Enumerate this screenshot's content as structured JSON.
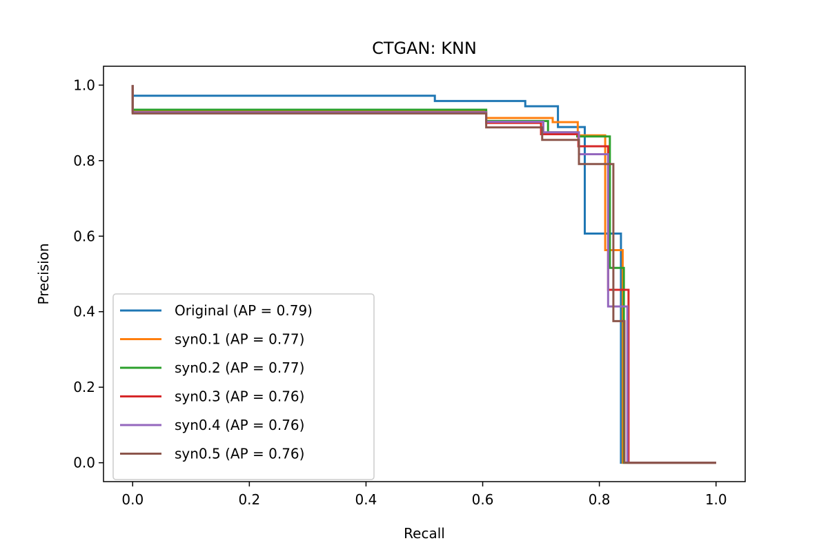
{
  "chart_data": {
    "type": "line",
    "title": "CTGAN: KNN",
    "xlabel": "Recall",
    "ylabel": "Precision",
    "xlim": [
      -0.05,
      1.05
    ],
    "ylim": [
      -0.05,
      1.05
    ],
    "xticks": [
      0.0,
      0.2,
      0.4,
      0.6,
      0.8,
      1.0
    ],
    "yticks": [
      0.0,
      0.2,
      0.4,
      0.6,
      0.8,
      1.0
    ],
    "xtick_labels": [
      "0.0",
      "0.2",
      "0.4",
      "0.6",
      "0.8",
      "1.0"
    ],
    "ytick_labels": [
      "0.0",
      "0.2",
      "0.4",
      "0.6",
      "0.8",
      "1.0"
    ],
    "grid": false,
    "legend_position": "lower-left",
    "series": [
      {
        "name": "Original (AP = 0.79)",
        "color": "#1f77b4",
        "points": [
          [
            0,
            1.0
          ],
          [
            0,
            0.972
          ],
          [
            0.518,
            0.972
          ],
          [
            0.518,
            0.958
          ],
          [
            0.673,
            0.958
          ],
          [
            0.673,
            0.944
          ],
          [
            0.729,
            0.944
          ],
          [
            0.729,
            0.889
          ],
          [
            0.775,
            0.889
          ],
          [
            0.775,
            0.607
          ],
          [
            0.837,
            0.607
          ],
          [
            0.837,
            0.0
          ],
          [
            1.0,
            0.0
          ]
        ]
      },
      {
        "name": "syn0.1 (AP = 0.77)",
        "color": "#ff7f0e",
        "points": [
          [
            0,
            1.0
          ],
          [
            0,
            0.932
          ],
          [
            0.606,
            0.932
          ],
          [
            0.606,
            0.913
          ],
          [
            0.72,
            0.913
          ],
          [
            0.72,
            0.902
          ],
          [
            0.763,
            0.902
          ],
          [
            0.763,
            0.867
          ],
          [
            0.81,
            0.867
          ],
          [
            0.81,
            0.563
          ],
          [
            0.84,
            0.563
          ],
          [
            0.84,
            0.0
          ],
          [
            1.0,
            0.0
          ]
        ]
      },
      {
        "name": "syn0.2 (AP = 0.77)",
        "color": "#2ca02c",
        "points": [
          [
            0,
            1.0
          ],
          [
            0,
            0.935
          ],
          [
            0.606,
            0.935
          ],
          [
            0.606,
            0.905
          ],
          [
            0.712,
            0.905
          ],
          [
            0.712,
            0.875
          ],
          [
            0.762,
            0.875
          ],
          [
            0.762,
            0.864
          ],
          [
            0.818,
            0.864
          ],
          [
            0.818,
            0.516
          ],
          [
            0.842,
            0.516
          ],
          [
            0.842,
            0.0
          ],
          [
            1.0,
            0.0
          ]
        ]
      },
      {
        "name": "syn0.3 (AP = 0.76)",
        "color": "#d62728",
        "points": [
          [
            0,
            1.0
          ],
          [
            0,
            0.928
          ],
          [
            0.606,
            0.928
          ],
          [
            0.606,
            0.9
          ],
          [
            0.7,
            0.9
          ],
          [
            0.7,
            0.87
          ],
          [
            0.764,
            0.87
          ],
          [
            0.764,
            0.838
          ],
          [
            0.815,
            0.838
          ],
          [
            0.815,
            0.458
          ],
          [
            0.85,
            0.458
          ],
          [
            0.85,
            0.0
          ],
          [
            1.0,
            0.0
          ]
        ]
      },
      {
        "name": "syn0.4 (AP = 0.76)",
        "color": "#9467bd",
        "points": [
          [
            0,
            1.0
          ],
          [
            0,
            0.928
          ],
          [
            0.606,
            0.928
          ],
          [
            0.606,
            0.903
          ],
          [
            0.704,
            0.903
          ],
          [
            0.704,
            0.875
          ],
          [
            0.765,
            0.875
          ],
          [
            0.765,
            0.817
          ],
          [
            0.815,
            0.817
          ],
          [
            0.815,
            0.414
          ],
          [
            0.848,
            0.414
          ],
          [
            0.848,
            0.0
          ],
          [
            1.0,
            0.0
          ]
        ]
      },
      {
        "name": "syn0.5 (AP = 0.76)",
        "color": "#8c564b",
        "points": [
          [
            0,
            1.0
          ],
          [
            0,
            0.925
          ],
          [
            0.606,
            0.925
          ],
          [
            0.606,
            0.888
          ],
          [
            0.702,
            0.888
          ],
          [
            0.702,
            0.855
          ],
          [
            0.765,
            0.855
          ],
          [
            0.765,
            0.791
          ],
          [
            0.824,
            0.791
          ],
          [
            0.824,
            0.375
          ],
          [
            0.843,
            0.375
          ],
          [
            0.843,
            0.0
          ],
          [
            1.0,
            0.0
          ]
        ]
      }
    ]
  }
}
